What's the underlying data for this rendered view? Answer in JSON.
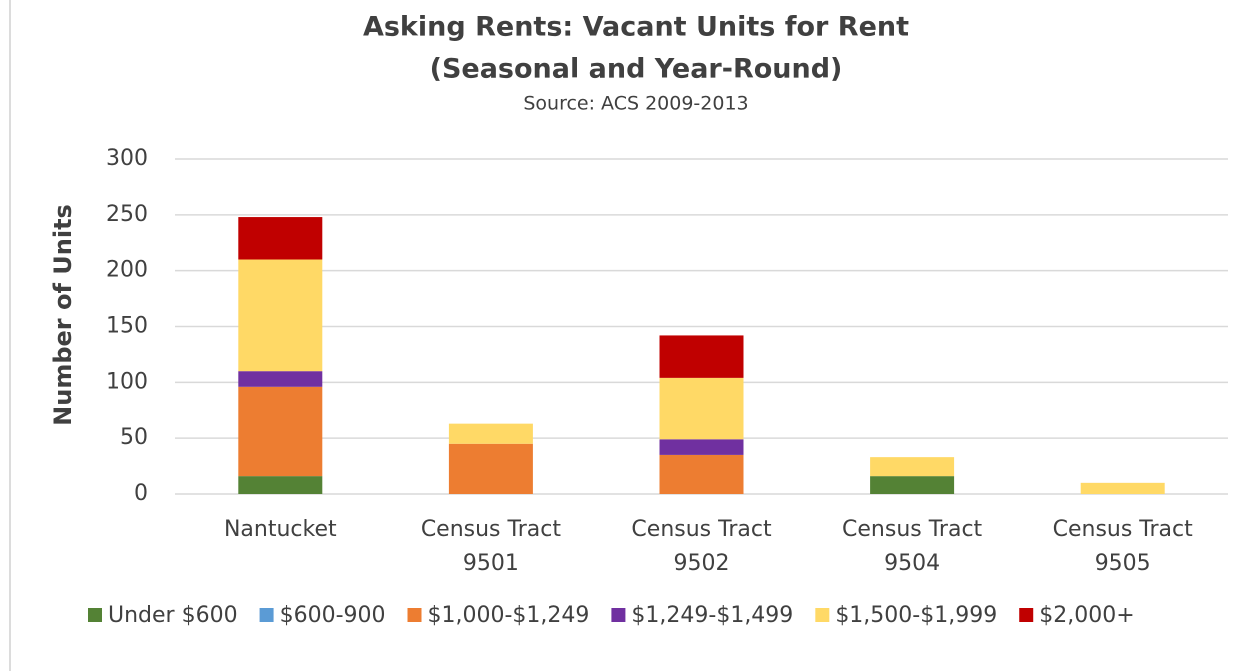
{
  "chart_data": {
    "type": "stacked_bar",
    "title": "Asking Rents: Vacant Units for Rent",
    "subtitle": "(Seasonal and Year-Round)",
    "source": "Source: ACS 2009-2013",
    "y_label": "Number of Units",
    "categories": [
      "Nantucket",
      "Census Tract 9501",
      "Census Tract 9502",
      "Census Tract 9504",
      "Census Tract 9505"
    ],
    "series": [
      {
        "name": "Under $600",
        "color": "#548235",
        "values": [
          16,
          0,
          0,
          16,
          0
        ]
      },
      {
        "name": "$600-900",
        "color": "#5b9bd5",
        "values": [
          0,
          0,
          0,
          0,
          0
        ]
      },
      {
        "name": "$1,000-$1,249",
        "color": "#ed7d31",
        "values": [
          80,
          45,
          35,
          0,
          0
        ]
      },
      {
        "name": "$1,249-$1,499",
        "color": "#7030a0",
        "values": [
          14,
          0,
          14,
          0,
          0
        ]
      },
      {
        "name": "$1,500-$1,999",
        "color": "#ffd966",
        "values": [
          100,
          18,
          55,
          17,
          10
        ]
      },
      {
        "name": "$2,000+",
        "color": "#c00000",
        "values": [
          38,
          0,
          38,
          0,
          0
        ]
      }
    ],
    "ylim": [
      0,
      300
    ],
    "yticks": [
      0,
      50,
      100,
      150,
      200,
      250,
      300
    ],
    "grid": true,
    "legend": "bottom"
  }
}
